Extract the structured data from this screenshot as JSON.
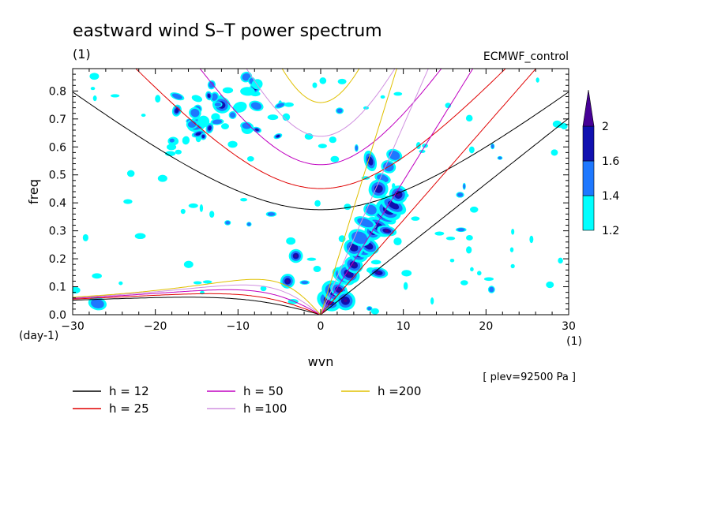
{
  "chart_data": {
    "type": "heatmap",
    "title": "eastward wind S–T power spectrum",
    "subtitle_left": "(1)",
    "subtitle_right": "ECMWF_control",
    "xlabel": "wvn",
    "ylabel": "freq",
    "x_unit_label": "(1)",
    "y_unit_label": "(day-1)",
    "annotation": "[ plev=92500 Pa ]",
    "xlim": [
      -30,
      30
    ],
    "ylim": [
      0,
      0.88
    ],
    "x_ticks": [
      -30,
      -20,
      -10,
      0,
      10,
      20,
      30
    ],
    "y_ticks": [
      0.0,
      0.1,
      0.2,
      0.3,
      0.4,
      0.5,
      0.6,
      0.7,
      0.8
    ],
    "colorbar": {
      "levels": [
        "1.2",
        "1.4",
        "1.6",
        "2"
      ],
      "colors": [
        "#00ffff",
        "#1e78ff",
        "#1010b0",
        "#460096"
      ],
      "extend": "max"
    },
    "dispersion_curves": [
      {
        "label": "h = 12",
        "h": 12,
        "color": "#000000"
      },
      {
        "label": "h = 25",
        "h": 25,
        "color": "#e00000"
      },
      {
        "label": "h = 50",
        "h": 50,
        "color": "#c000c0"
      },
      {
        "label": "h =100",
        "h": 100,
        "color": "#d090e0"
      },
      {
        "label": "h =200",
        "h": 200,
        "color": "#e0c000"
      }
    ],
    "significant_regions": [
      {
        "wvn": 8,
        "freq": 0.3,
        "level": "2"
      },
      {
        "wvn": 7,
        "freq": 0.15,
        "level": "2"
      },
      {
        "wvn": 3,
        "freq": 0.05,
        "level": "2"
      },
      {
        "wvn": -3,
        "freq": 0.21,
        "level": "2"
      },
      {
        "wvn": -4,
        "freq": 0.12,
        "level": "2"
      },
      {
        "wvn": 6,
        "freq": 0.55,
        "level": "1.6"
      },
      {
        "wvn": 7,
        "freq": 0.45,
        "level": "1.6"
      },
      {
        "wvn": -12,
        "freq": 0.75,
        "level": "1.6"
      },
      {
        "wvn": -15,
        "freq": 0.68,
        "level": "1.4"
      },
      {
        "wvn": -9,
        "freq": 0.85,
        "level": "1.4"
      },
      {
        "wvn": -27,
        "freq": 0.04,
        "level": "1.4"
      }
    ]
  }
}
